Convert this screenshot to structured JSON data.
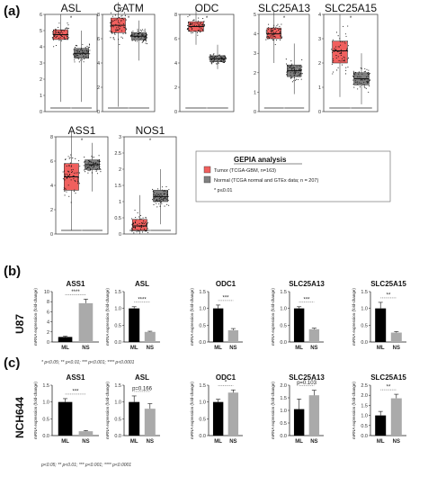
{
  "panel_labels": [
    "(a)",
    "(b)",
    "(c)"
  ],
  "row_labels": {
    "b": "U87",
    "c": "NCH644"
  },
  "legend": {
    "title": "GEPIA analysis",
    "items": [
      {
        "label": "Tumor (TCGA-GBM, n=163)",
        "color": "#f0605e"
      },
      {
        "label": "Normal (TCGA normal and GTEx data; n = 207)",
        "color": "#808080"
      }
    ],
    "note": "* p≤0.01"
  },
  "footnotes": {
    "b": "* p<0.05; ** p<0.01; *** p<0.001; **** p<0.0001",
    "c": "p<0.05; ** p<0.01; *** p<0.001; **** p<0.0001"
  },
  "chart_data": [
    {
      "type": "box",
      "panel": "a",
      "title": "ASL",
      "ylim": [
        0,
        6
      ],
      "yticks": [
        0,
        1,
        2,
        3,
        4,
        5,
        6
      ],
      "sig": "*",
      "boxes": [
        {
          "group": "Tumor",
          "min": 0.6,
          "q1": 4.45,
          "median": 4.75,
          "q3": 5.05,
          "max": 6.0
        },
        {
          "group": "Normal",
          "min": 0.6,
          "q1": 3.3,
          "median": 3.6,
          "q3": 3.9,
          "max": 5.0
        }
      ]
    },
    {
      "type": "box",
      "panel": "a",
      "title": "GATM",
      "ylim": [
        0,
        8
      ],
      "yticks": [
        0,
        2,
        4,
        6,
        8
      ],
      "sig": "*",
      "boxes": [
        {
          "group": "Tumor",
          "min": 0.4,
          "q1": 6.5,
          "median": 7.1,
          "q3": 7.7,
          "max": 9.0
        },
        {
          "group": "Normal",
          "min": 4.2,
          "q1": 5.9,
          "median": 6.2,
          "q3": 6.5,
          "max": 7.5
        }
      ]
    },
    {
      "type": "box",
      "panel": "a",
      "title": "ODC",
      "ylim": [
        0,
        8
      ],
      "yticks": [
        0,
        2,
        4,
        6,
        8
      ],
      "sig": "*",
      "boxes": [
        {
          "group": "Tumor",
          "min": 5.5,
          "q1": 6.6,
          "median": 7.0,
          "q3": 7.4,
          "max": 8.6
        },
        {
          "group": "Normal",
          "min": 3.5,
          "q1": 4.1,
          "median": 4.35,
          "q3": 4.6,
          "max": 5.5
        }
      ]
    },
    {
      "type": "box",
      "panel": "a",
      "title": "SLC25A13",
      "ylim": [
        0,
        5
      ],
      "yticks": [
        0,
        1,
        2,
        3,
        4,
        5
      ],
      "sig": "*",
      "boxes": [
        {
          "group": "Tumor",
          "min": 2.5,
          "q1": 3.75,
          "median": 4.0,
          "q3": 4.3,
          "max": 5.2
        },
        {
          "group": "Normal",
          "min": 0.9,
          "q1": 1.8,
          "median": 2.1,
          "q3": 2.4,
          "max": 3.5
        }
      ]
    },
    {
      "type": "box",
      "panel": "a",
      "title": "SLC25A15",
      "ylim": [
        0,
        4
      ],
      "yticks": [
        0,
        1,
        2,
        3,
        4
      ],
      "sig": "*",
      "boxes": [
        {
          "group": "Tumor",
          "min": 0.6,
          "q1": 2.0,
          "median": 2.5,
          "q3": 2.9,
          "max": 4.0
        },
        {
          "group": "Normal",
          "min": 0.3,
          "q1": 1.1,
          "median": 1.35,
          "q3": 1.6,
          "max": 2.4
        }
      ]
    },
    {
      "type": "box",
      "panel": "a",
      "title": "ASS1",
      "ylim": [
        0,
        8
      ],
      "yticks": [
        0,
        2,
        4,
        6,
        8
      ],
      "sig": "*",
      "boxes": [
        {
          "group": "Tumor",
          "min": 0.3,
          "q1": 3.6,
          "median": 4.7,
          "q3": 5.8,
          "max": 8.5
        },
        {
          "group": "Normal",
          "min": 3.5,
          "q1": 5.3,
          "median": 5.7,
          "q3": 6.1,
          "max": 7.5
        }
      ]
    },
    {
      "type": "box",
      "panel": "a",
      "title": "NOS1",
      "ylim": [
        0,
        3
      ],
      "yticks": [
        0,
        0.5,
        1,
        1.5,
        2,
        2.5,
        3
      ],
      "sig": "*",
      "boxes": [
        {
          "group": "Tumor",
          "min": 0.0,
          "q1": 0.1,
          "median": 0.25,
          "q3": 0.45,
          "max": 1.2
        },
        {
          "group": "Normal",
          "min": 0.3,
          "q1": 1.0,
          "median": 1.15,
          "q3": 1.35,
          "max": 2.0
        }
      ]
    },
    {
      "type": "bar",
      "panel": "b",
      "title": "ASS1",
      "ylabel": "mRNA expression (fold-change)",
      "categories": [
        "ML",
        "NS"
      ],
      "values": [
        1.0,
        7.7
      ],
      "errors": [
        0.15,
        0.8
      ],
      "ylim": [
        0,
        10
      ],
      "yticks": [
        0,
        2,
        4,
        6,
        8,
        10
      ],
      "sig": "****"
    },
    {
      "type": "bar",
      "panel": "b",
      "title": "ASL",
      "ylabel": "mRNA expression (fold-change)",
      "categories": [
        "ML",
        "NS"
      ],
      "values": [
        1.0,
        0.3
      ],
      "errors": [
        0.05,
        0.02
      ],
      "ylim": [
        0,
        1.5
      ],
      "yticks": [
        0,
        0.5,
        1.0,
        1.5
      ],
      "sig": "****"
    },
    {
      "type": "bar",
      "panel": "b",
      "title": "ODC1",
      "ylabel": "mRNA expression (fold-change)",
      "categories": [
        "ML",
        "NS"
      ],
      "values": [
        1.0,
        0.35
      ],
      "errors": [
        0.1,
        0.05
      ],
      "ylim": [
        0,
        1.5
      ],
      "yticks": [
        0,
        0.5,
        1.0,
        1.5
      ],
      "sig": "***"
    },
    {
      "type": "bar",
      "panel": "b",
      "title": "SLC25A13",
      "ylabel": "mRNA expression (fold-change)",
      "categories": [
        "ML",
        "NS"
      ],
      "values": [
        1.0,
        0.38
      ],
      "errors": [
        0.05,
        0.03
      ],
      "ylim": [
        0,
        1.5
      ],
      "yticks": [
        0,
        0.5,
        1.0,
        1.5
      ],
      "sig": "***"
    },
    {
      "type": "bar",
      "panel": "b",
      "title": "SLC25A15",
      "ylabel": "mRNA expression (fold-change)",
      "categories": [
        "ML",
        "NS"
      ],
      "values": [
        1.0,
        0.28
      ],
      "errors": [
        0.18,
        0.03
      ],
      "ylim": [
        0,
        1.5
      ],
      "yticks": [
        0,
        0.5,
        1.0,
        1.5
      ],
      "sig": "**"
    },
    {
      "type": "bar",
      "panel": "c",
      "title": "ASS1",
      "ylabel": "mRNA expression (fold-change)",
      "categories": [
        "ML",
        "NS"
      ],
      "values": [
        1.0,
        0.13
      ],
      "errors": [
        0.1,
        0.02
      ],
      "ylim": [
        0,
        1.5
      ],
      "yticks": [
        0,
        0.5,
        1.0,
        1.5
      ],
      "sig": "***"
    },
    {
      "type": "bar",
      "panel": "c",
      "title": "ASL",
      "ylabel": "mRNA expression (fold-change)",
      "categories": [
        "ML",
        "NS"
      ],
      "values": [
        1.0,
        0.8
      ],
      "errors": [
        0.18,
        0.15
      ],
      "ylim": [
        0,
        1.5
      ],
      "yticks": [
        0,
        0.5,
        1.0,
        1.5
      ],
      "sig": "p=0.166"
    },
    {
      "type": "bar",
      "panel": "c",
      "title": "ODC1",
      "ylabel": "mRNA expression (fold-change)",
      "categories": [
        "ML",
        "NS"
      ],
      "values": [
        1.0,
        1.28
      ],
      "errors": [
        0.08,
        0.08
      ],
      "ylim": [
        0,
        1.5
      ],
      "yticks": [
        0,
        0.5,
        1.0,
        1.5
      ],
      "sig": "*"
    },
    {
      "type": "bar",
      "panel": "c",
      "title": "SLC25A13",
      "ylabel": "mRNA expression (fold-change)",
      "categories": [
        "ML",
        "NS"
      ],
      "values": [
        1.05,
        1.6
      ],
      "errors": [
        0.4,
        0.2
      ],
      "ylim": [
        0,
        2.0
      ],
      "yticks": [
        0,
        0.5,
        1.0,
        1.5,
        2.0
      ],
      "sig": "p=0.103"
    },
    {
      "type": "bar",
      "panel": "c",
      "title": "SLC25A15",
      "ylabel": "mRNA expression (fold-change)",
      "categories": [
        "ML",
        "NS"
      ],
      "values": [
        1.0,
        1.85
      ],
      "errors": [
        0.2,
        0.2
      ],
      "ylim": [
        0,
        2.5
      ],
      "yticks": [
        0,
        0.5,
        1.0,
        1.5,
        2.0,
        2.5
      ],
      "sig": "**"
    }
  ]
}
